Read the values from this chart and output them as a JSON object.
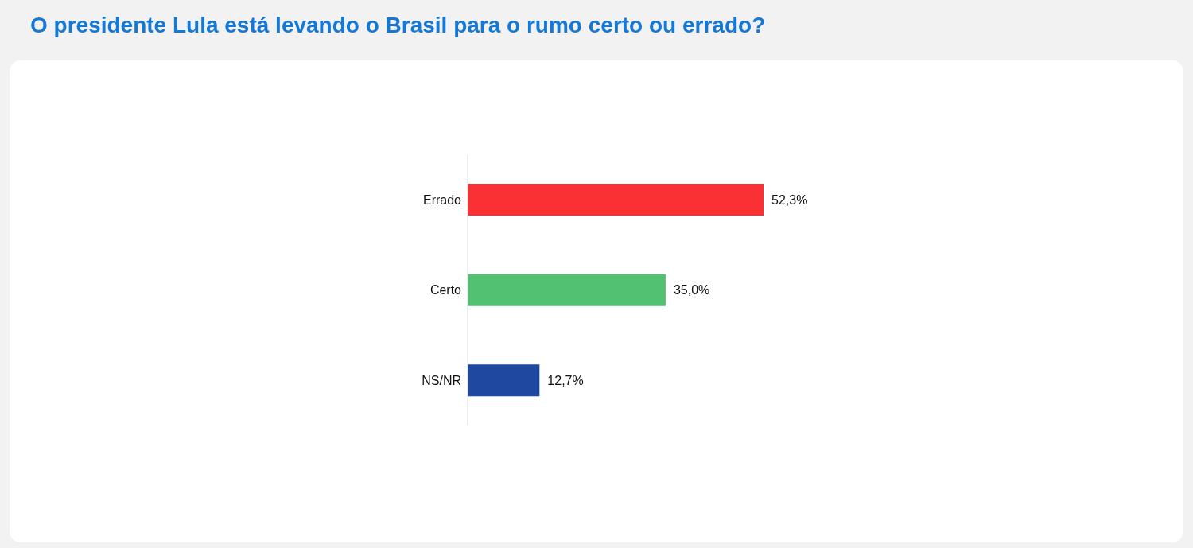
{
  "chart_data": {
    "type": "bar",
    "orientation": "horizontal",
    "title": "O presidente Lula está levando o Brasil para o rumo certo ou errado?",
    "categories": [
      "Errado",
      "Certo",
      "NS/NR"
    ],
    "values": [
      52.3,
      35.0,
      12.7
    ],
    "colors": [
      "#f93034",
      "#52c272",
      "#1f48a0"
    ],
    "value_labels": [
      "52,3%",
      "35,0%",
      "12,7%"
    ]
  }
}
